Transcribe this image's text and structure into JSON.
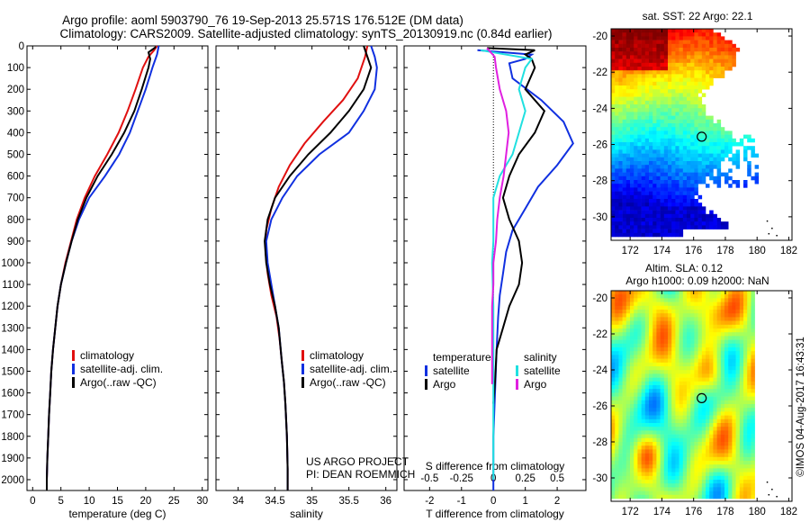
{
  "header": {
    "line1": "Argo profile: aoml 5903790_76 19-Sep-2013 25.571S 176.512E (DM data)",
    "line2": "Climatology: CARS2009. Satellite-adjusted climatology: synTS_20130919.nc (0.84d earlier)"
  },
  "credit": "©IMOS 04-Aug-2017 16:43:31",
  "project": {
    "line1": "US ARGO PROJECT",
    "line2": "PI: DEAN ROEMMICH"
  },
  "colors": {
    "climatology": "#e01010",
    "satellite": "#1030e0",
    "argo": "#000000",
    "salinity_argo": "#e020e0",
    "salinity_sat": "#20e0e0"
  },
  "chart_data": [
    {
      "id": "temperature",
      "type": "line",
      "xlabel": "temperature (deg C)",
      "ylabel": "",
      "xlim": [
        -1,
        31
      ],
      "ylim": [
        2050,
        0
      ],
      "xticks": [
        "0",
        "5",
        "10",
        "15",
        "20",
        "25",
        "30"
      ],
      "yticks": [
        "0",
        "100",
        "200",
        "300",
        "400",
        "500",
        "600",
        "700",
        "800",
        "900",
        "1000",
        "1100",
        "1200",
        "1300",
        "1400",
        "1500",
        "1600",
        "1700",
        "1800",
        "1900",
        "2000"
      ],
      "legend": [
        "climatology",
        "satellite-adj. clim.",
        "Argo(..raw -QC)"
      ],
      "series": [
        {
          "name": "climatology",
          "color": "#e01010",
          "points": [
            [
              22,
              0
            ],
            [
              21.5,
              20
            ],
            [
              20.5,
              50
            ],
            [
              19.5,
              100
            ],
            [
              18.2,
              200
            ],
            [
              16.8,
              300
            ],
            [
              15.2,
              400
            ],
            [
              13.2,
              500
            ],
            [
              11,
              600
            ],
            [
              9.2,
              700
            ],
            [
              7.8,
              800
            ],
            [
              6.8,
              900
            ],
            [
              5.8,
              1000
            ],
            [
              5,
              1100
            ],
            [
              4.4,
              1200
            ],
            [
              4,
              1300
            ],
            [
              3.6,
              1400
            ],
            [
              3.3,
              1500
            ],
            [
              3.1,
              1600
            ],
            [
              2.9,
              1700
            ],
            [
              2.75,
              1800
            ],
            [
              2.6,
              1900
            ],
            [
              2.5,
              2000
            ],
            [
              2.5,
              2050
            ]
          ]
        },
        {
          "name": "satellite-adj. clim.",
          "color": "#1030e0",
          "points": [
            [
              22.3,
              0
            ],
            [
              22,
              40
            ],
            [
              21.2,
              100
            ],
            [
              20,
              200
            ],
            [
              18.6,
              300
            ],
            [
              17.2,
              400
            ],
            [
              15.3,
              500
            ],
            [
              12.8,
              600
            ],
            [
              10,
              700
            ],
            [
              8.2,
              800
            ],
            [
              6.9,
              900
            ],
            [
              5.9,
              1000
            ],
            [
              5,
              1100
            ],
            [
              4.4,
              1200
            ],
            [
              4,
              1300
            ],
            [
              3.6,
              1400
            ],
            [
              3.3,
              1500
            ],
            [
              3.1,
              1600
            ],
            [
              2.9,
              1700
            ],
            [
              2.75,
              1800
            ],
            [
              2.6,
              1900
            ],
            [
              2.5,
              2000
            ],
            [
              2.5,
              2050
            ]
          ]
        },
        {
          "name": "Argo(..raw -QC)",
          "color": "#000000",
          "points": [
            [
              21.8,
              5
            ],
            [
              20.5,
              30
            ],
            [
              20.8,
              60
            ],
            [
              20.5,
              100
            ],
            [
              19.3,
              200
            ],
            [
              18,
              300
            ],
            [
              16.2,
              400
            ],
            [
              14,
              500
            ],
            [
              11.5,
              600
            ],
            [
              9.5,
              700
            ],
            [
              8,
              800
            ],
            [
              6.9,
              900
            ],
            [
              5.9,
              1000
            ],
            [
              5,
              1100
            ],
            [
              4.4,
              1200
            ],
            [
              4,
              1300
            ],
            [
              3.6,
              1400
            ],
            [
              3.3,
              1500
            ],
            [
              3.1,
              1600
            ],
            [
              2.9,
              1700
            ],
            [
              2.75,
              1800
            ],
            [
              2.6,
              1900
            ],
            [
              2.5,
              2000
            ],
            [
              2.5,
              2050
            ]
          ]
        }
      ]
    },
    {
      "id": "salinity",
      "type": "line",
      "xlabel": "salinity",
      "ylabel": "",
      "xlim": [
        33.7,
        36.15
      ],
      "ylim": [
        2050,
        0
      ],
      "xticks": [
        "34",
        "34.5",
        "35",
        "35.5",
        "36"
      ],
      "legend": [
        "climatology",
        "satellite-adj. clim.",
        "Argo(..raw -QC)"
      ],
      "series": [
        {
          "name": "climatology",
          "color": "#e01010",
          "points": [
            [
              35.75,
              0
            ],
            [
              35.72,
              50
            ],
            [
              35.62,
              150
            ],
            [
              35.42,
              250
            ],
            [
              35.15,
              350
            ],
            [
              34.9,
              450
            ],
            [
              34.7,
              550
            ],
            [
              34.55,
              650
            ],
            [
              34.45,
              750
            ],
            [
              34.38,
              850
            ],
            [
              34.37,
              950
            ],
            [
              34.4,
              1050
            ],
            [
              34.45,
              1150
            ],
            [
              34.52,
              1250
            ],
            [
              34.56,
              1350
            ],
            [
              34.59,
              1450
            ],
            [
              34.62,
              1550
            ],
            [
              34.64,
              1650
            ],
            [
              34.66,
              1800
            ],
            [
              34.67,
              1950
            ],
            [
              34.67,
              2050
            ]
          ]
        },
        {
          "name": "satellite-adj. clim.",
          "color": "#1030e0",
          "points": [
            [
              35.8,
              0
            ],
            [
              35.85,
              50
            ],
            [
              35.88,
              100
            ],
            [
              35.85,
              200
            ],
            [
              35.7,
              300
            ],
            [
              35.5,
              400
            ],
            [
              35.1,
              500
            ],
            [
              34.8,
              600
            ],
            [
              34.6,
              700
            ],
            [
              34.45,
              800
            ],
            [
              34.38,
              900
            ],
            [
              34.4,
              1000
            ],
            [
              34.45,
              1100
            ],
            [
              34.5,
              1200
            ],
            [
              34.55,
              1300
            ],
            [
              34.59,
              1450
            ],
            [
              34.62,
              1550
            ],
            [
              34.64,
              1650
            ],
            [
              34.66,
              1800
            ],
            [
              34.67,
              1950
            ],
            [
              34.67,
              2050
            ]
          ]
        },
        {
          "name": "Argo(..raw -QC)",
          "color": "#000000",
          "points": [
            [
              35.7,
              0
            ],
            [
              35.75,
              50
            ],
            [
              35.8,
              100
            ],
            [
              35.7,
              200
            ],
            [
              35.5,
              300
            ],
            [
              35.25,
              400
            ],
            [
              34.95,
              500
            ],
            [
              34.7,
              600
            ],
            [
              34.5,
              700
            ],
            [
              34.4,
              800
            ],
            [
              34.36,
              900
            ],
            [
              34.38,
              1000
            ],
            [
              34.43,
              1100
            ],
            [
              34.5,
              1200
            ],
            [
              34.55,
              1300
            ],
            [
              34.59,
              1450
            ],
            [
              34.62,
              1550
            ],
            [
              34.64,
              1650
            ],
            [
              34.66,
              1800
            ],
            [
              34.67,
              1950
            ],
            [
              34.67,
              2050
            ]
          ]
        }
      ]
    },
    {
      "id": "difference",
      "type": "line",
      "xlabel": "T difference from climatology",
      "xlabel_top": "S difference from climatology",
      "ylabel": "",
      "xlim": [
        -2.8,
        2.9
      ],
      "ylim": [
        2050,
        0
      ],
      "xticks": [
        "-2",
        "-1",
        "0",
        "1",
        "2"
      ],
      "xticks_top": [
        "-0.5",
        "-0.25",
        "0",
        "0.25",
        "0.5"
      ],
      "legend_temperature": {
        "title": "temperature",
        "items": [
          "satellite",
          "Argo"
        ]
      },
      "legend_salinity": {
        "title": "salinity",
        "items": [
          "satellite",
          "Argo"
        ]
      },
      "series": [
        {
          "name": "temperature satellite",
          "color": "#1030e0",
          "points": [
            [
              -0.5,
              20
            ],
            [
              1.2,
              40
            ],
            [
              1.0,
              60
            ],
            [
              0.5,
              80
            ],
            [
              0.6,
              150
            ],
            [
              1.5,
              250
            ],
            [
              2.2,
              350
            ],
            [
              2.5,
              450
            ],
            [
              2.0,
              550
            ],
            [
              1.4,
              650
            ],
            [
              1.0,
              750
            ],
            [
              0.6,
              850
            ],
            [
              0.4,
              950
            ],
            [
              0.3,
              1050
            ],
            [
              0.2,
              1150
            ],
            [
              0.15,
              1250
            ],
            [
              0.1,
              1400
            ],
            [
              0.05,
              1600
            ],
            [
              0,
              1800
            ],
            [
              0,
              2050
            ]
          ]
        },
        {
          "name": "temperature Argo",
          "color": "#000000",
          "points": [
            [
              -0.2,
              10
            ],
            [
              1.3,
              20
            ],
            [
              1.0,
              40
            ],
            [
              1.2,
              60
            ],
            [
              1.3,
              100
            ],
            [
              1.0,
              200
            ],
            [
              1.6,
              300
            ],
            [
              1.3,
              400
            ],
            [
              0.8,
              500
            ],
            [
              0.5,
              600
            ],
            [
              0.3,
              700
            ],
            [
              0.5,
              800
            ],
            [
              0.8,
              900
            ],
            [
              0.9,
              1000
            ],
            [
              0.8,
              1100
            ],
            [
              0.5,
              1200
            ],
            [
              0.3,
              1300
            ],
            [
              0.1,
              1400
            ],
            [
              0.05,
              1550
            ],
            [
              0,
              1650
            ]
          ]
        },
        {
          "name": "salinity satellite",
          "color": "#20e0e0",
          "points": [
            [
              -0.1,
              20
            ],
            [
              0.3,
              60
            ],
            [
              0.25,
              100
            ],
            [
              0.2,
              200
            ],
            [
              0.25,
              300
            ],
            [
              0.2,
              400
            ],
            [
              0.15,
              500
            ],
            [
              0.05,
              600
            ],
            [
              0.0,
              700
            ],
            [
              0.0,
              800
            ],
            [
              0.0,
              900
            ],
            [
              -0.01,
              1000
            ],
            [
              0.0,
              1200
            ],
            [
              0.0,
              1400
            ],
            [
              0.0,
              1600
            ],
            [
              0.0,
              1800
            ],
            [
              0.0,
              2000
            ]
          ]
        },
        {
          "name": "salinity Argo",
          "color": "#e020e0",
          "points": [
            [
              -0.05,
              10
            ],
            [
              0.01,
              50
            ],
            [
              0.02,
              100
            ],
            [
              0.05,
              200
            ],
            [
              0.1,
              300
            ],
            [
              0.12,
              400
            ],
            [
              0.1,
              500
            ],
            [
              0.08,
              600
            ],
            [
              0.05,
              700
            ],
            [
              0.03,
              800
            ],
            [
              0.02,
              900
            ],
            [
              0.0,
              1000
            ],
            [
              0.0,
              1100
            ],
            [
              -0.01,
              1200
            ],
            [
              -0.01,
              1300
            ],
            [
              -0.01,
              1400
            ],
            [
              -0.01,
              1500
            ],
            [
              -0.01,
              1560
            ]
          ]
        }
      ]
    },
    {
      "id": "sst_map",
      "type": "heatmap",
      "title": "sat. SST: 22 Argo: 22.1",
      "xticks": [
        "172",
        "174",
        "176",
        "178",
        "180",
        "182"
      ],
      "yticks": [
        "-20",
        "-22",
        "-24",
        "-26",
        "-28",
        "-30"
      ],
      "xlim": [
        170.8,
        182.2
      ],
      "ylim": [
        -31.3,
        -19.6
      ],
      "float_position": [
        176.51,
        -25.57
      ]
    },
    {
      "id": "sla_map",
      "type": "heatmap",
      "title_line1": "Altim. SLA: 0.12",
      "title_line2": "Argo h1000: 0.09 h2000: NaN",
      "xticks": [
        "172",
        "174",
        "176",
        "178",
        "180",
        "182"
      ],
      "yticks": [
        "-20",
        "-22",
        "-24",
        "-26",
        "-28",
        "-30"
      ],
      "xlim": [
        170.8,
        182.2
      ],
      "ylim": [
        -31.3,
        -19.6
      ],
      "float_position": [
        176.51,
        -25.57
      ]
    }
  ]
}
